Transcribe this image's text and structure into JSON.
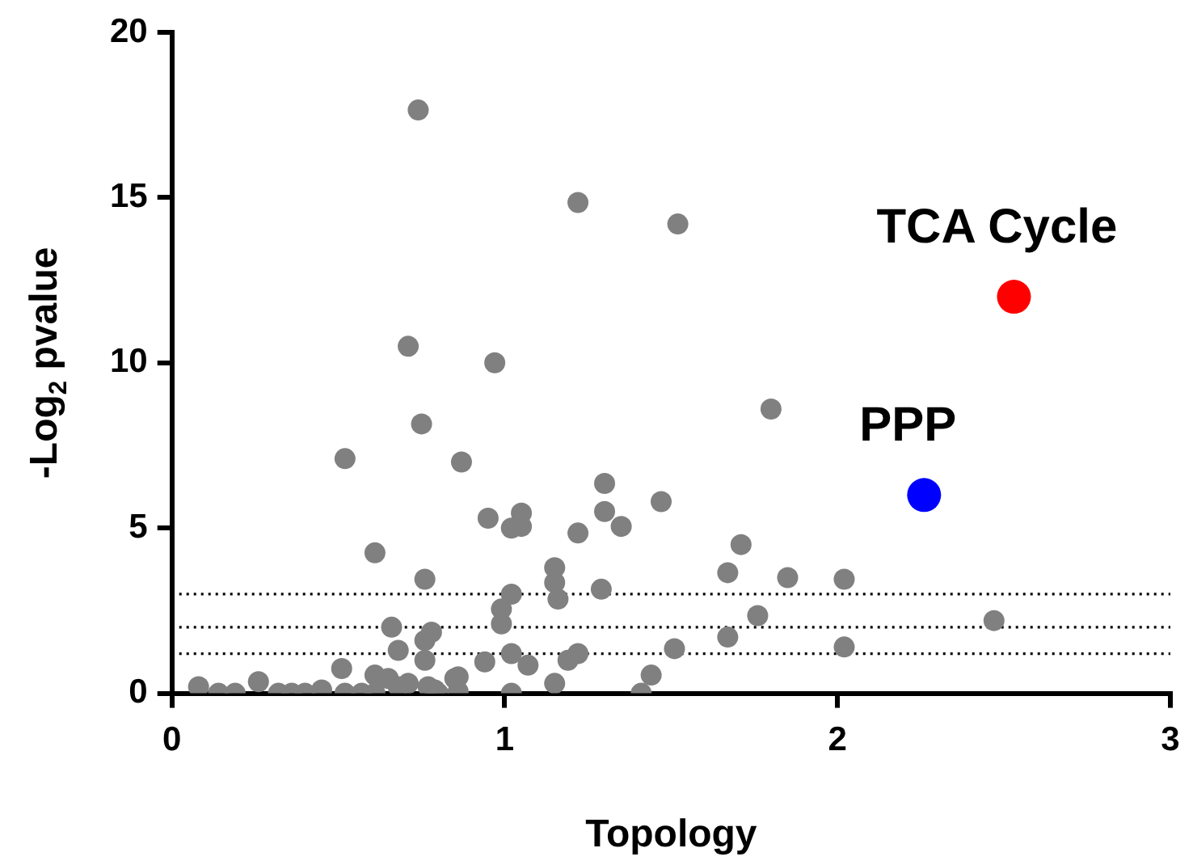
{
  "chart_data": {
    "type": "scatter",
    "xlabel": "Topology",
    "ylabel": "-Log$_{2}$ pvalue",
    "xlim": [
      0,
      3
    ],
    "xticks": [
      0,
      1,
      2,
      3
    ],
    "ylim": [
      0,
      20
    ],
    "yticks": [
      0,
      5,
      10,
      15,
      20
    ],
    "grid": false,
    "legend": false,
    "marker": "circle",
    "ref_lines": [
      {
        "axis": "y",
        "value": 3,
        "line_style": "dotted"
      },
      {
        "axis": "y",
        "value": 2,
        "line_style": "dotted"
      },
      {
        "axis": "y",
        "value": 1.2,
        "line_style": "dotted"
      }
    ],
    "series": [
      {
        "color": "#808080",
        "x": [
          0.08,
          0.14,
          0.19,
          0.26,
          0.32,
          0.36,
          0.4,
          0.45,
          0.51,
          0.52,
          0.57,
          0.61,
          0.61,
          0.65,
          0.68,
          0.71,
          0.77,
          0.8,
          0.86,
          0.86,
          1.02,
          0.79,
          0.85,
          1.15,
          1.41,
          1.44,
          0.94,
          1.02,
          1.07,
          0.76,
          0.68,
          0.76,
          0.78,
          0.66,
          0.99,
          0.99,
          1.02,
          0.76,
          0.61,
          0.52,
          0.87,
          0.95,
          1.05,
          1.02,
          1.05,
          1.3,
          1.47,
          1.3,
          1.35,
          1.22,
          1.71,
          1.67,
          1.15,
          1.15,
          1.16,
          1.29,
          1.76,
          1.67,
          1.51,
          1.22,
          1.19,
          1.85,
          2.02,
          2.02,
          2.47,
          1.8,
          1.52,
          0.74,
          1.22,
          0.71,
          0.97,
          0.75
        ],
        "values": [
          0.2,
          0,
          0,
          0.35,
          0,
          0,
          0,
          0.1,
          0.75,
          0,
          0,
          0.55,
          0,
          0.45,
          0.2,
          0.3,
          0.2,
          0,
          0.5,
          0.05,
          0,
          0.1,
          0.45,
          0.3,
          0,
          0.55,
          0.95,
          1.2,
          0.85,
          1.0,
          1.3,
          1.6,
          1.85,
          2.0,
          2.1,
          2.55,
          3.0,
          3.45,
          4.25,
          7.1,
          7.0,
          5.3,
          5.45,
          5.0,
          5.05,
          6.35,
          5.8,
          5.5,
          5.05,
          4.85,
          4.5,
          3.65,
          3.8,
          3.35,
          2.85,
          3.15,
          2.35,
          1.7,
          1.35,
          1.2,
          1.0,
          3.5,
          3.45,
          1.4,
          2.2,
          8.6,
          14.2,
          17.65,
          14.85,
          10.5,
          10.0,
          8.15
        ]
      },
      {
        "name": "PPP",
        "color": "#0000ff",
        "x": [
          2.26
        ],
        "values": [
          6.0
        ]
      },
      {
        "name": "TCA Cycle",
        "color": "#ff0000",
        "x": [
          2.53
        ],
        "values": [
          12.0
        ]
      }
    ]
  }
}
